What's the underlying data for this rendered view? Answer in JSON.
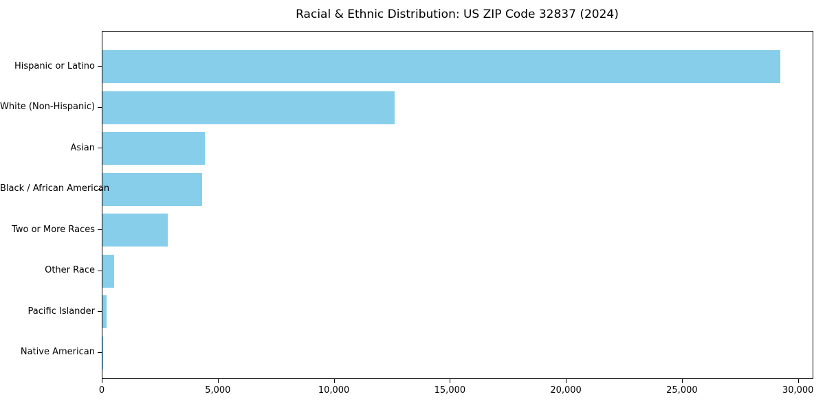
{
  "chart_data": {
    "type": "bar",
    "orientation": "horizontal",
    "title": "Racial & Ethnic Distribution: US ZIP Code 32837 (2024)",
    "categories": [
      "Hispanic or Latino",
      "White (Non-Hispanic)",
      "Asian",
      "Black / African American",
      "Two or More Races",
      "Other Race",
      "Pacific Islander",
      "Native American"
    ],
    "values": [
      29200,
      12600,
      4400,
      4300,
      2800,
      500,
      170,
      40
    ],
    "xlabel": "",
    "ylabel": "",
    "xlim": [
      0,
      30660
    ],
    "xticks": [
      0,
      5000,
      10000,
      15000,
      20000,
      25000,
      30000
    ],
    "xtick_labels": [
      "0",
      "5,000",
      "10,000",
      "15,000",
      "20,000",
      "25,000",
      "30,000"
    ],
    "bar_color": "#87CEEB",
    "background_color": "#ffffff",
    "spine_color": "#000000",
    "grid": false,
    "legend": null
  }
}
